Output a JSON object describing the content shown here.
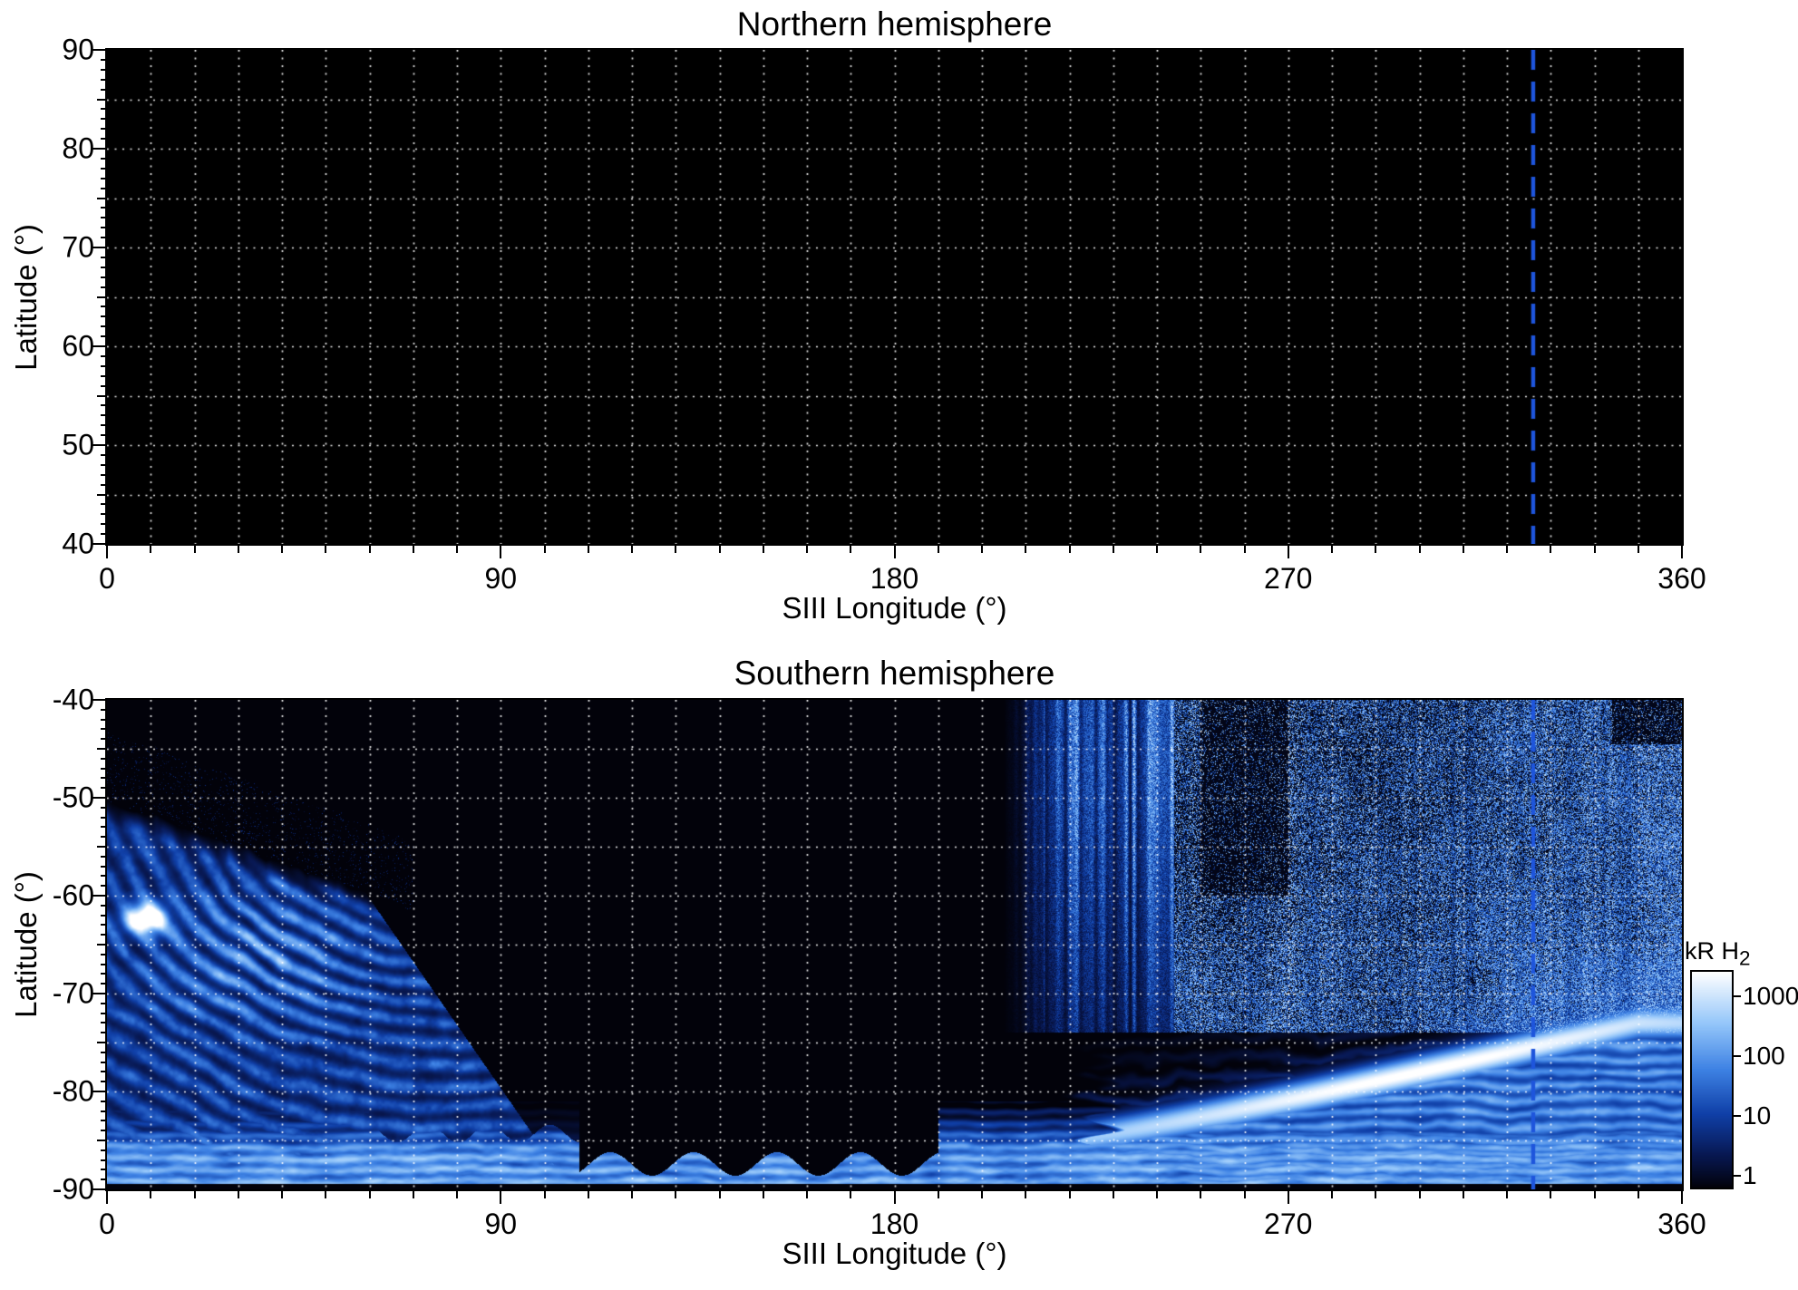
{
  "figure": {
    "background": "#ffffff"
  },
  "panels": {
    "north": {
      "title": "Northern hemisphere",
      "xlabel": "SIII Longitude (°)",
      "ylabel": "Latitude (°)",
      "xlim": [
        0,
        360
      ],
      "ylim": [
        40,
        90
      ],
      "xtick_values": [
        0,
        90,
        180,
        270,
        360
      ],
      "xtick_labels": [
        "0",
        "90",
        "180",
        "270",
        "360"
      ],
      "ytick_values": [
        40,
        50,
        60,
        70,
        80,
        90
      ],
      "ytick_labels": [
        "40",
        "50",
        "60",
        "70",
        "80",
        "90"
      ],
      "marker_longitude": 326
    },
    "south": {
      "title": "Southern hemisphere",
      "xlabel": "SIII Longitude (°)",
      "ylabel": "Latitude (°)",
      "xlim": [
        0,
        360
      ],
      "ylim": [
        -90,
        -40
      ],
      "xtick_values": [
        0,
        90,
        180,
        270,
        360
      ],
      "xtick_labels": [
        "0",
        "90",
        "180",
        "270",
        "360"
      ],
      "ytick_values": [
        -40,
        -50,
        -60,
        -70,
        -80,
        -90
      ],
      "ytick_labels": [
        "-40",
        "-50",
        "-60",
        "-70",
        "-80",
        "-90"
      ],
      "marker_longitude": 326
    }
  },
  "colorbar": {
    "label_main": "kR H",
    "label_sub": "2",
    "scale": "log",
    "tick_labels": [
      "1000",
      "100",
      "10",
      "1"
    ],
    "tick_values": [
      1000,
      100,
      10,
      1
    ],
    "range_kR": [
      1,
      1000
    ]
  },
  "style": {
    "plot_background": "#000000",
    "grid_color": "rgba(255,255,255,0.92)",
    "marker_color": "#1e55dc",
    "tick_color": "#000000",
    "colormap_stops": [
      [
        0.0,
        2,
        2,
        10
      ],
      [
        0.18,
        8,
        24,
        82
      ],
      [
        0.38,
        16,
        64,
        168
      ],
      [
        0.58,
        62,
        130,
        228
      ],
      [
        0.78,
        148,
        198,
        250
      ],
      [
        1.0,
        255,
        255,
        255
      ]
    ]
  },
  "chart_data": {
    "type": "heatmap",
    "panels": [
      {
        "title": "Northern hemisphere",
        "xlabel": "SIII Longitude (°)",
        "ylabel": "Latitude (°)",
        "x_range": [
          0,
          360
        ],
        "y_range": [
          40,
          90
        ],
        "grid": "white dotted, 10 deg lon x 5 deg lat",
        "content": "no emission detected (entire panel black)",
        "marker_line": {
          "type": "vertical-dashed",
          "longitude": 326
        }
      },
      {
        "title": "Southern hemisphere",
        "xlabel": "SIII Longitude (°)",
        "ylabel": "Latitude (°)",
        "x_range": [
          0,
          360
        ],
        "y_range": [
          -90,
          -40
        ],
        "grid": "white dotted, 10 deg lon x 5 deg lat",
        "marker_line": {
          "type": "vertical-dashed",
          "longitude": 326
        },
        "features": [
          {
            "name": "dusk-fan-emission",
            "lon_range": [
              0,
              105
            ],
            "lat_range": [
              -89,
              -51
            ],
            "peak_kR": 300,
            "description": "striated fan of blue emission with sharp slanted eastern edge from about (58,-59) to (100,-87)"
          },
          {
            "name": "bright-spot",
            "lon": 9,
            "lat": -62.5,
            "peak_kR": 1000,
            "description": "small white streak"
          },
          {
            "name": "polar-band",
            "lon_range": [
              0,
              360
            ],
            "lat_range": [
              -90,
              -82
            ],
            "peak_kR": 150,
            "description": "bright layered band near the pole, interrupted by black scallops near lon 110-190; thin black strip at -90"
          },
          {
            "name": "main-auroral-arc",
            "lon_range": [
              222,
              352
            ],
            "lat_range": [
              -85,
              -73
            ],
            "peak_kR": 1000,
            "description": "bright white arc rising from (230,-84) to (350,-73), brightest 265-335; scalloped black fingers at western edge near lon 215-240"
          },
          {
            "name": "striated-column",
            "lon_range": [
              212,
              244
            ],
            "lat_range": [
              -74,
              -40
            ],
            "peak_kR": 200,
            "description": "vertical bright striations"
          },
          {
            "name": "speckled-emission",
            "lon_range": [
              244,
              360
            ],
            "lat_range": [
              -74,
              -40
            ],
            "peak_kR": 100,
            "description": "patchy speckled emission, denser toward lon 360, darker vertical stripe near lon 252-268"
          }
        ]
      }
    ],
    "colorbar": {
      "label": "kR H2",
      "scale": "log",
      "range": [
        1,
        1000
      ]
    }
  }
}
